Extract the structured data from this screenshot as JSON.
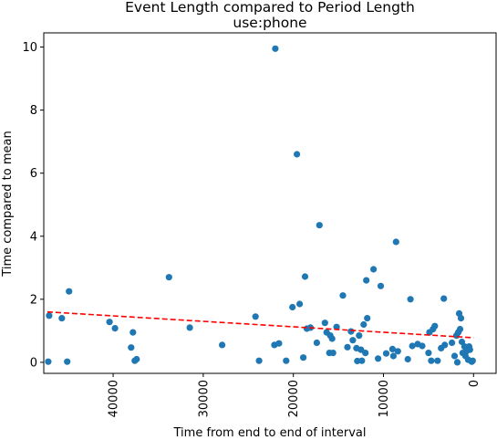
{
  "chart_data": {
    "type": "scatter",
    "title": "Event Length compared to Period Length",
    "subtitle": "use:phone",
    "xlabel": "Time from end to end of interval",
    "ylabel": "Time compared to mean",
    "x_inverted": true,
    "xlim": [
      47700,
      -2500
    ],
    "ylim": [
      -0.35,
      10.45
    ],
    "x_ticks": [
      40000,
      30000,
      20000,
      10000,
      0
    ],
    "y_ticks": [
      0,
      2,
      4,
      6,
      8,
      10
    ],
    "point_color": "#1f77b4",
    "trend_color": "#ff0000",
    "trend_line": [
      [
        47300,
        1.6
      ],
      [
        0,
        0.78
      ]
    ],
    "points": [
      [
        47200,
        0.02
      ],
      [
        47100,
        1.48
      ],
      [
        45700,
        1.4
      ],
      [
        45100,
        0.02
      ],
      [
        44900,
        2.25
      ],
      [
        40400,
        1.28
      ],
      [
        39800,
        1.08
      ],
      [
        38000,
        0.47
      ],
      [
        37800,
        0.95
      ],
      [
        37600,
        0.05
      ],
      [
        37400,
        0.1
      ],
      [
        33800,
        2.7
      ],
      [
        31500,
        1.1
      ],
      [
        27900,
        0.55
      ],
      [
        24200,
        1.45
      ],
      [
        23800,
        0.05
      ],
      [
        22000,
        9.95
      ],
      [
        21600,
        0.6
      ],
      [
        22100,
        0.55
      ],
      [
        20800,
        0.05
      ],
      [
        20100,
        1.75
      ],
      [
        19600,
        6.6
      ],
      [
        19300,
        1.85
      ],
      [
        18900,
        0.15
      ],
      [
        18700,
        2.72
      ],
      [
        18500,
        1.07
      ],
      [
        18100,
        1.1
      ],
      [
        17400,
        0.62
      ],
      [
        17100,
        4.35
      ],
      [
        16500,
        1.25
      ],
      [
        16300,
        0.95
      ],
      [
        16000,
        0.3
      ],
      [
        15900,
        0.85
      ],
      [
        15700,
        0.75
      ],
      [
        15600,
        0.3
      ],
      [
        15200,
        1.12
      ],
      [
        14500,
        2.12
      ],
      [
        14000,
        0.48
      ],
      [
        13600,
        0.98
      ],
      [
        13400,
        0.7
      ],
      [
        13000,
        0.45
      ],
      [
        12900,
        0.04
      ],
      [
        12700,
        0.85
      ],
      [
        12500,
        0.4
      ],
      [
        12400,
        0.05
      ],
      [
        12200,
        1.2
      ],
      [
        12000,
        0.3
      ],
      [
        11900,
        2.6
      ],
      [
        11800,
        1.4
      ],
      [
        11100,
        2.95
      ],
      [
        10600,
        0.12
      ],
      [
        10300,
        2.42
      ],
      [
        9700,
        0.28
      ],
      [
        9000,
        0.42
      ],
      [
        8900,
        0.2
      ],
      [
        8600,
        3.82
      ],
      [
        8400,
        0.35
      ],
      [
        7300,
        0.1
      ],
      [
        7000,
        2.0
      ],
      [
        6800,
        0.52
      ],
      [
        6200,
        0.58
      ],
      [
        5700,
        0.52
      ],
      [
        5000,
        0.3
      ],
      [
        4900,
        0.95
      ],
      [
        4700,
        0.05
      ],
      [
        4500,
        1.05
      ],
      [
        4300,
        1.15
      ],
      [
        4000,
        0.05
      ],
      [
        3600,
        0.45
      ],
      [
        3300,
        2.02
      ],
      [
        3200,
        0.55
      ],
      [
        2400,
        0.62
      ],
      [
        2100,
        0.2
      ],
      [
        1900,
        0.85
      ],
      [
        1800,
        0.0
      ],
      [
        1700,
        0.95
      ],
      [
        1600,
        1.55
      ],
      [
        1500,
        1.05
      ],
      [
        1400,
        1.4
      ],
      [
        1300,
        0.65
      ],
      [
        1200,
        0.3
      ],
      [
        1000,
        0.5
      ],
      [
        900,
        0.2
      ],
      [
        800,
        0.35
      ],
      [
        600,
        0.08
      ],
      [
        500,
        0.5
      ],
      [
        400,
        0.4
      ],
      [
        200,
        0.02
      ],
      [
        100,
        0.05
      ]
    ]
  }
}
